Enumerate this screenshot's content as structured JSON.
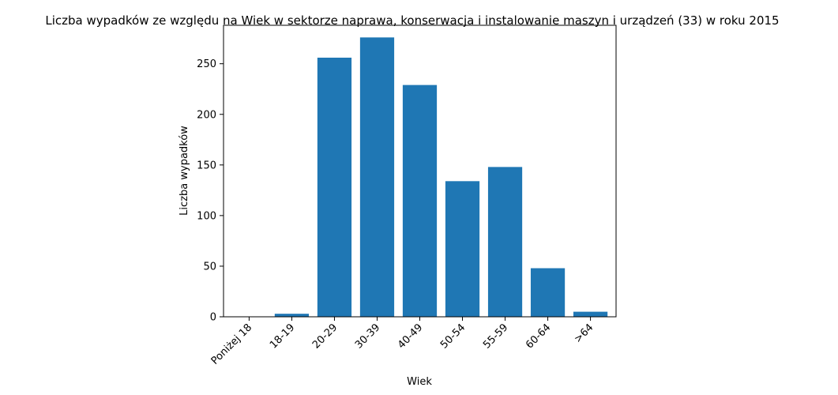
{
  "chart_data": {
    "type": "bar",
    "title": "Liczba wypadków ze względu na Wiek w sektorze naprawa, konserwacja i instalowanie maszyn i urządzeń  (33) w roku 2015",
    "xlabel": "Wiek",
    "ylabel": "Liczba wypadków",
    "categories": [
      "Poniżej 18",
      "18-19",
      "20-29",
      "30-39",
      "40-49",
      "50-54",
      "55-59",
      "60-64",
      ">64"
    ],
    "values": [
      0,
      3,
      256,
      276,
      229,
      134,
      148,
      48,
      5
    ],
    "ylim": [
      0,
      288
    ],
    "yticks": [
      0,
      50,
      100,
      150,
      200,
      250
    ],
    "grid": false,
    "bar_color": "#1f77b4"
  }
}
